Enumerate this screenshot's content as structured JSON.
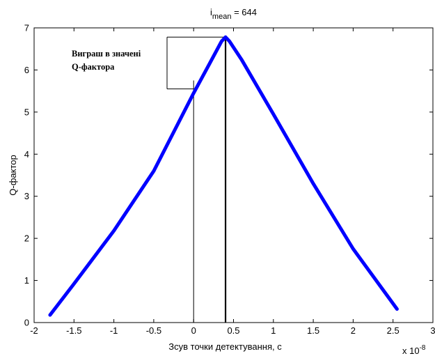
{
  "chart_data": {
    "type": "line",
    "title_base": "i",
    "title_sub": "mean",
    "title_rest": " = 644",
    "xlabel": "Зсув точки детектування, с",
    "ylabel": "Q-фактор",
    "x_multiplier_base": "x 10",
    "x_multiplier_exp": "-8",
    "xlim": [
      -2,
      3
    ],
    "ylim": [
      0,
      7
    ],
    "xticks": [
      -2,
      -1.5,
      -1,
      -0.5,
      0,
      0.5,
      1,
      1.5,
      2,
      2.5,
      3
    ],
    "xtick_labels": [
      "-2",
      "-1.5",
      "-1",
      "-0.5",
      "0",
      "0.5",
      "1",
      "1.5",
      "2",
      "2.5",
      "3"
    ],
    "yticks": [
      0,
      1,
      2,
      3,
      4,
      5,
      6,
      7
    ],
    "ytick_labels": [
      "0",
      "1",
      "2",
      "3",
      "4",
      "5",
      "6",
      "7"
    ],
    "grid": false,
    "series": [
      {
        "color": "#0000ff",
        "x": [
          -1.8,
          -1.5,
          -1.0,
          -0.5,
          0.0,
          0.2,
          0.35,
          0.4,
          0.45,
          0.6,
          1.0,
          1.5,
          2.0,
          2.55
        ],
        "y": [
          0.18,
          0.92,
          2.18,
          3.6,
          5.45,
          6.15,
          6.68,
          6.78,
          6.68,
          6.25,
          4.95,
          3.3,
          1.75,
          0.32
        ]
      }
    ],
    "annotations": {
      "peak_x": 0.4,
      "peak_y": 6.78,
      "ref_x": 0.0,
      "ref_y": 5.55,
      "text_line1": "Виграш в значені",
      "text_line2": "Q-фактора"
    }
  }
}
